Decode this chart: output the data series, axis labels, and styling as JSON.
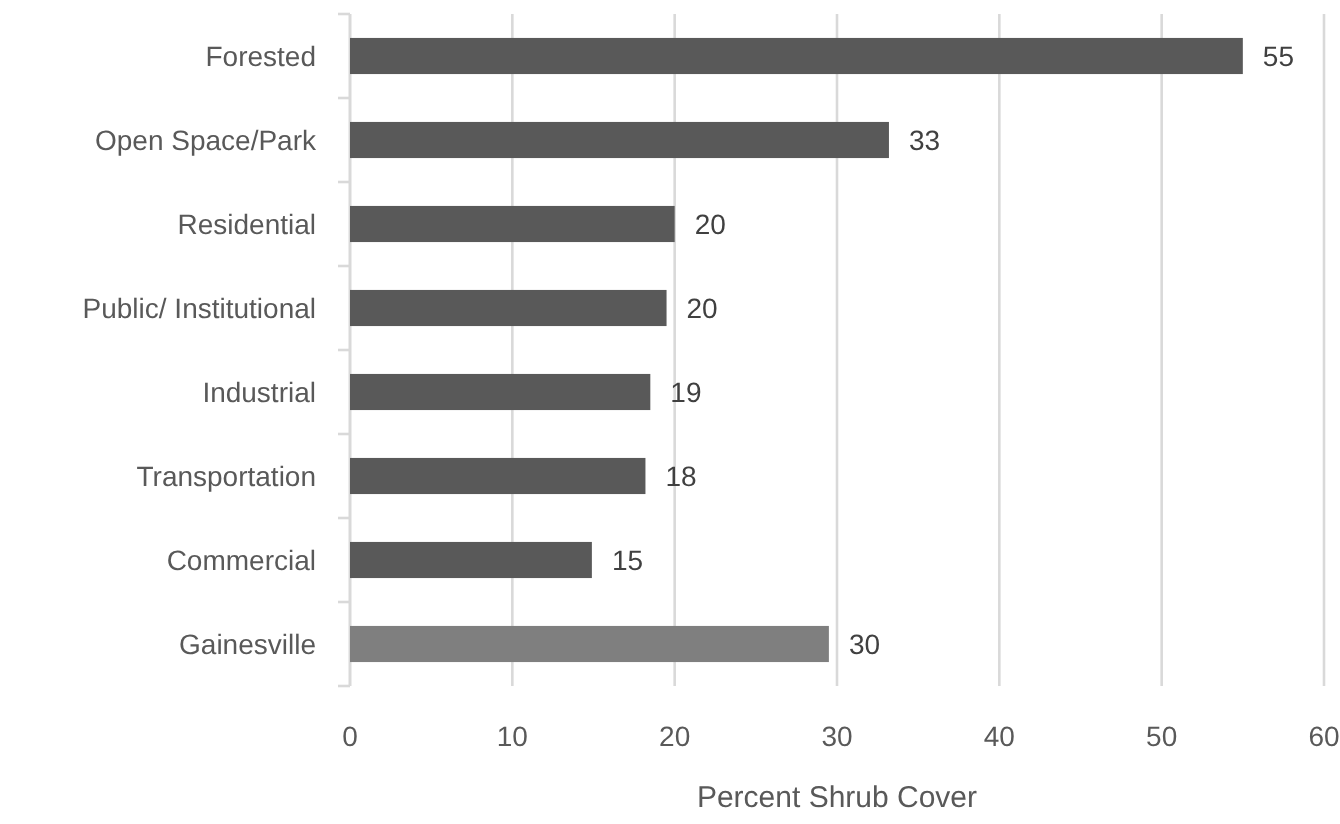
{
  "chart_data": {
    "type": "bar",
    "orientation": "horizontal",
    "xlabel": "Percent Shrub Cover",
    "categories": [
      "Forested",
      "Open Space/Park",
      "Residential",
      "Public/ Institutional",
      "Industrial",
      "Transportation",
      "Commercial",
      "Gainesville"
    ],
    "values": [
      55,
      33.2,
      20,
      19.5,
      18.5,
      18.2,
      14.9,
      29.5
    ],
    "value_labels": [
      "55",
      "33",
      "20",
      "20",
      "19",
      "18",
      "15",
      "30"
    ],
    "colors": [
      "#595959",
      "#595959",
      "#595959",
      "#595959",
      "#595959",
      "#595959",
      "#595959",
      "#7f7f7f"
    ],
    "xlim": [
      0,
      60
    ],
    "xticks": [
      0,
      10,
      20,
      30,
      40,
      50,
      60
    ],
    "grid": "x"
  }
}
